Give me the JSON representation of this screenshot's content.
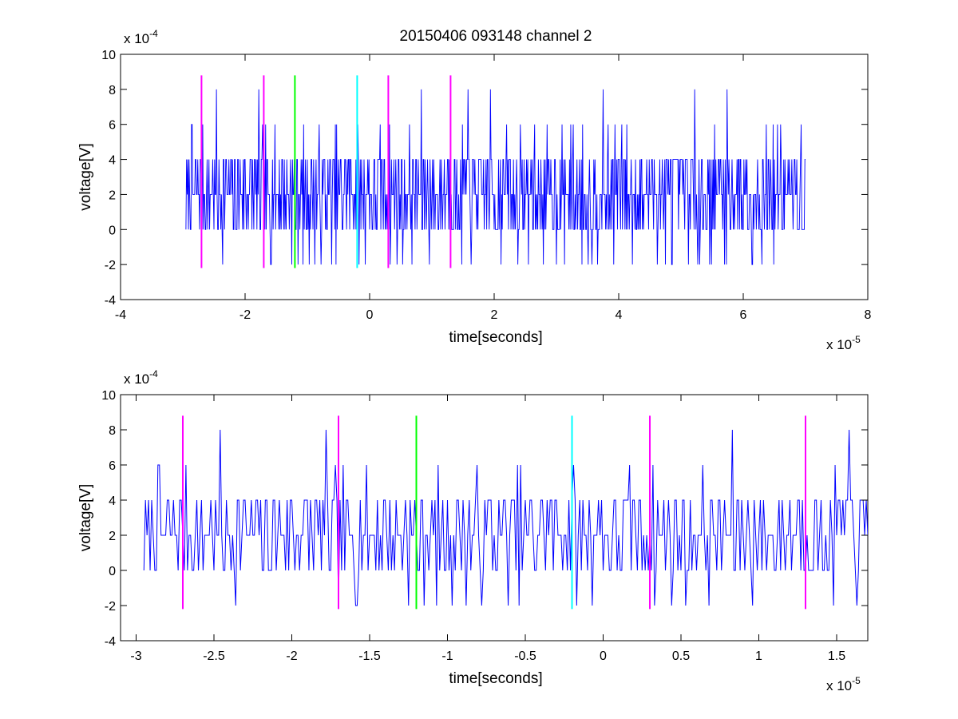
{
  "chart_data": [
    {
      "type": "line",
      "title": "20150406 093148 channel 2",
      "xlabel": "time[seconds]",
      "ylabel": "voltage[V]",
      "x_exponent_label": "x 10",
      "x_exponent_power": "-5",
      "y_exponent_label": "x 10",
      "y_exponent_power": "-4",
      "x_scale": 1e-05,
      "y_scale": 0.0001,
      "xlim": [
        -4,
        8
      ],
      "ylim": [
        -4,
        10
      ],
      "x_ticks": [
        -4,
        -2,
        0,
        2,
        4,
        6,
        8
      ],
      "x_tick_labels": [
        "-4",
        "-2",
        "0",
        "2",
        "4",
        "6",
        "8"
      ],
      "y_ticks": [
        -4,
        -2,
        0,
        2,
        4,
        6,
        8,
        10
      ],
      "y_tick_labels": [
        "-4",
        "-2",
        "0",
        "2",
        "4",
        "6",
        "8",
        "10"
      ],
      "grid": false,
      "signal": {
        "color": "#0000ff",
        "x_start": -2.95,
        "x_end": 7.0,
        "quantum": 2,
        "base_level": 2,
        "noise_seed": 7,
        "samples": 1000
      },
      "markers": [
        {
          "x": -2.7,
          "color": "#ff00ff",
          "ymin": -2.2,
          "ymax": 8.8
        },
        {
          "x": -1.7,
          "color": "#ff00ff",
          "ymin": -2.2,
          "ymax": 8.8
        },
        {
          "x": -1.2,
          "color": "#00ff00",
          "ymin": -2.2,
          "ymax": 8.8
        },
        {
          "x": -0.2,
          "color": "#00ffff",
          "ymin": -2.2,
          "ymax": 8.8
        },
        {
          "x": 0.3,
          "color": "#ff00ff",
          "ymin": -2.2,
          "ymax": 8.8
        },
        {
          "x": 1.3,
          "color": "#ff00ff",
          "ymin": -2.2,
          "ymax": 8.8
        }
      ]
    },
    {
      "type": "line",
      "title": "",
      "xlabel": "time[seconds]",
      "ylabel": "voltage[V]",
      "x_exponent_label": "x 10",
      "x_exponent_power": "-5",
      "y_exponent_label": "x 10",
      "y_exponent_power": "-4",
      "x_scale": 1e-05,
      "y_scale": 0.0001,
      "xlim": [
        -3.1,
        1.7
      ],
      "ylim": [
        -4,
        10
      ],
      "x_ticks": [
        -3,
        -2.5,
        -2,
        -1.5,
        -1,
        -0.5,
        0,
        0.5,
        1,
        1.5
      ],
      "x_tick_labels": [
        "-3",
        "-2.5",
        "-2",
        "-1.5",
        "-1",
        "-0.5",
        "0",
        "0.5",
        "1",
        "1.5"
      ],
      "y_ticks": [
        -4,
        -2,
        0,
        2,
        4,
        6,
        8,
        10
      ],
      "y_tick_labels": [
        "-4",
        "-2",
        "0",
        "2",
        "4",
        "6",
        "8",
        "10"
      ],
      "grid": false,
      "signal": {
        "color": "#0000ff",
        "x_start": -2.95,
        "x_end": 1.7,
        "quantum": 2,
        "base_level": 2,
        "noise_seed": 7,
        "samples": 470
      },
      "markers": [
        {
          "x": -2.7,
          "color": "#ff00ff",
          "ymin": -2.2,
          "ymax": 8.8
        },
        {
          "x": -1.7,
          "color": "#ff00ff",
          "ymin": -2.2,
          "ymax": 8.8
        },
        {
          "x": -1.2,
          "color": "#00ff00",
          "ymin": -2.2,
          "ymax": 8.8
        },
        {
          "x": -0.2,
          "color": "#00ffff",
          "ymin": -2.2,
          "ymax": 8.8
        },
        {
          "x": 0.3,
          "color": "#ff00ff",
          "ymin": -2.2,
          "ymax": 8.8
        },
        {
          "x": 1.3,
          "color": "#ff00ff",
          "ymin": -2.2,
          "ymax": 8.8
        }
      ]
    }
  ]
}
